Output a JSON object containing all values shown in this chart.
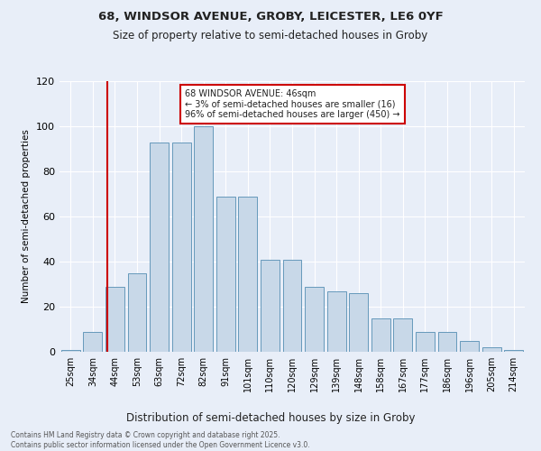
{
  "title1": "68, WINDSOR AVENUE, GROBY, LEICESTER, LE6 0YF",
  "title2": "Size of property relative to semi-detached houses in Groby",
  "xlabel": "Distribution of semi-detached houses by size in Groby",
  "ylabel": "Number of semi-detached properties",
  "annotation_title": "68 WINDSOR AVENUE: 46sqm",
  "annotation_line1": "← 3% of semi-detached houses are smaller (16)",
  "annotation_line2": "96% of semi-detached houses are larger (450) →",
  "vline_x": 2,
  "categories": [
    "25sqm",
    "34sqm",
    "44sqm",
    "53sqm",
    "63sqm",
    "72sqm",
    "82sqm",
    "91sqm",
    "101sqm",
    "110sqm",
    "120sqm",
    "129sqm",
    "139sqm",
    "148sqm",
    "158sqm",
    "167sqm",
    "177sqm",
    "186sqm",
    "196sqm",
    "205sqm",
    "214sqm"
  ],
  "values": [
    1,
    9,
    29,
    35,
    93,
    93,
    100,
    69,
    69,
    41,
    41,
    29,
    27,
    26,
    15,
    15,
    9,
    9,
    5,
    2,
    1
  ],
  "bar_color": "#c8d8e8",
  "bar_edge_color": "#6699bb",
  "vline_color": "#cc0000",
  "annotation_box_color": "#cc0000",
  "background_color": "#e8eef8",
  "grid_color": "#ffffff",
  "footer1": "Contains HM Land Registry data © Crown copyright and database right 2025.",
  "footer2": "Contains public sector information licensed under the Open Government Licence v3.0.",
  "ylim": [
    0,
    120
  ],
  "yticks": [
    0,
    20,
    40,
    60,
    80,
    100,
    120
  ],
  "title1_fontsize": 9.5,
  "title2_fontsize": 8.5
}
